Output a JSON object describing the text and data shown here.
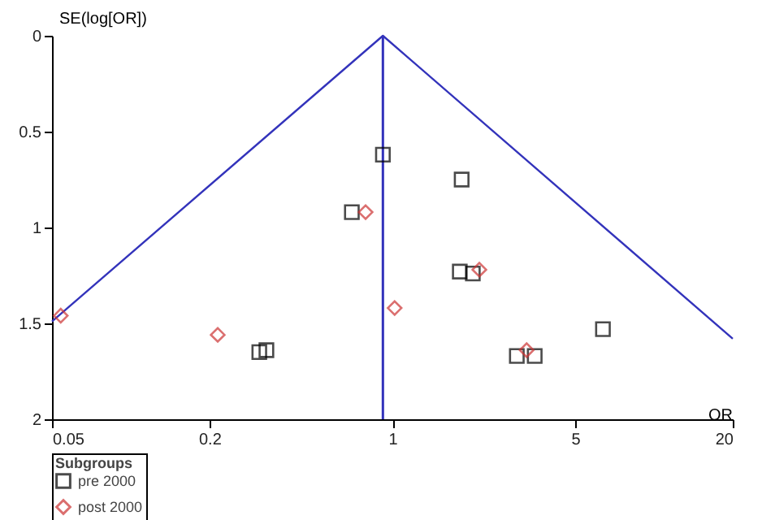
{
  "chart_data": {
    "type": "scatter",
    "xlabel": "OR",
    "ylabel": "SE(log[OR])",
    "legend_title": "Subgroups",
    "legend": "bottom",
    "grid": false,
    "log": "x",
    "xlim": [
      0.05,
      20
    ],
    "xticks": [
      0.05,
      0.2,
      1,
      5,
      20
    ],
    "ylim": [
      2,
      0
    ],
    "yticks": [
      0,
      0.5,
      1,
      1.5,
      2
    ],
    "series": [
      {
        "name": "pre 2000",
        "color": "#000000",
        "marker": "square",
        "x": [
          0.92,
          1.84,
          0.7,
          1.81,
          2.03,
          6.38,
          2.99,
          3.5,
          0.31,
          0.33
        ],
        "values": [
          0.62,
          0.75,
          0.92,
          1.23,
          1.24,
          1.53,
          1.67,
          1.67,
          1.65,
          1.64
        ]
      },
      {
        "name": "post 2000",
        "color": "#cc3333",
        "marker": "diamond",
        "x": [
          0.054,
          0.215,
          0.79,
          1.02,
          2.15,
          3.26
        ],
        "values": [
          1.46,
          1.56,
          0.92,
          1.42,
          1.22,
          1.64
        ]
      },
      {
        "type": "line",
        "color": "#3333bb",
        "line_style": "solid",
        "marker": "none",
        "x": [
          0.05,
          0.92,
          20
        ],
        "values": [
          1.49,
          0,
          1.58
        ]
      }
    ],
    "ref_lines": [
      {
        "axis": "x",
        "value": 0.92,
        "color": "#3333bb"
      }
    ]
  }
}
